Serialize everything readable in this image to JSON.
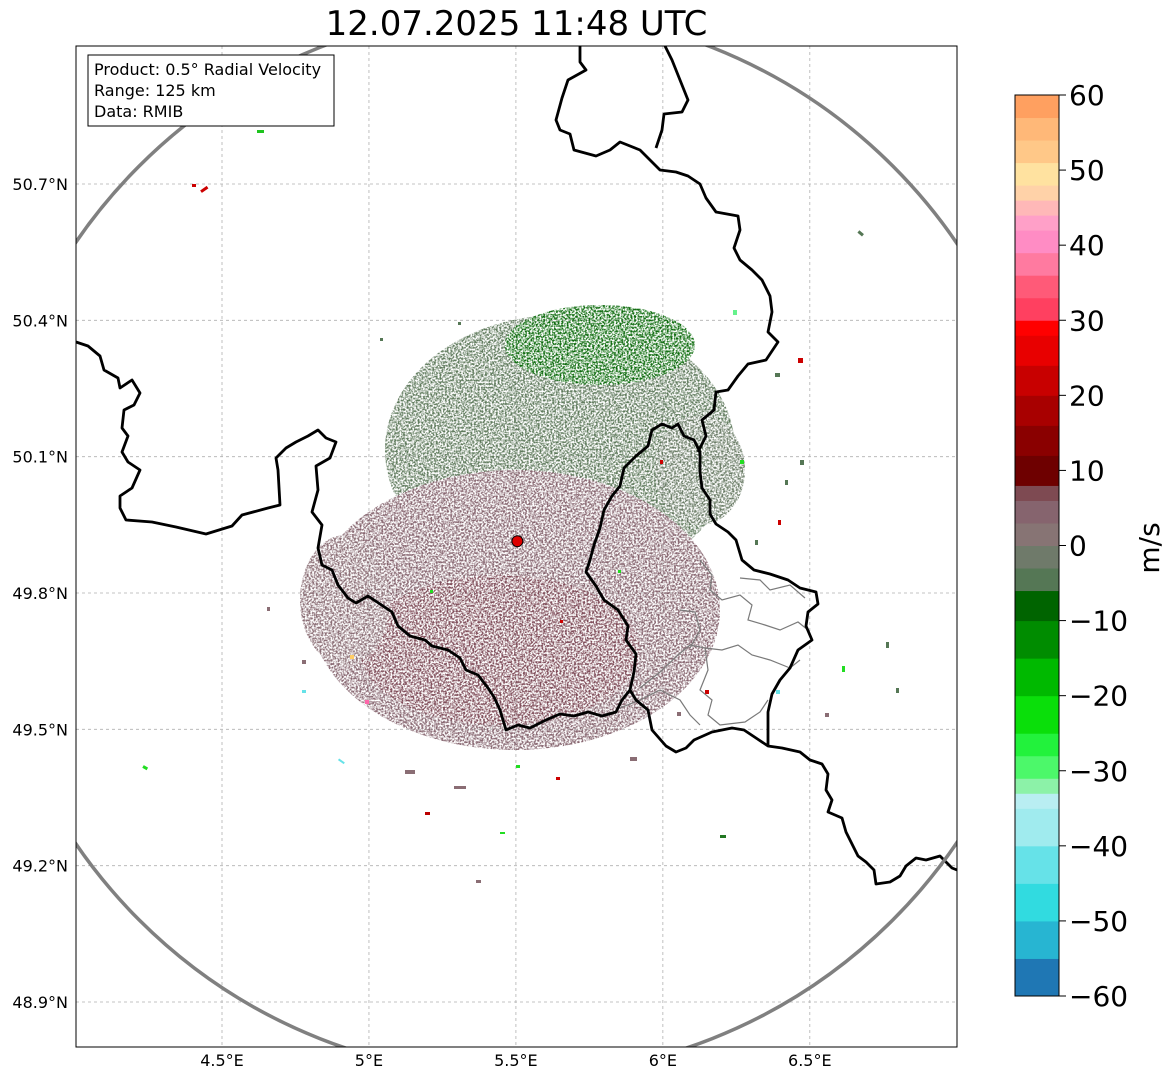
{
  "title": "12.07.2025 11:48 UTC",
  "info_box": {
    "product": "Product: 0.5° Radial Velocity",
    "range": "Range: 125 km",
    "data": "Data: RMIB"
  },
  "map": {
    "lon_ticks": [
      {
        "value": 4.5,
        "label": "4.5°E"
      },
      {
        "value": 5.0,
        "label": "5°E"
      },
      {
        "value": 5.5,
        "label": "5.5°E"
      },
      {
        "value": 6.0,
        "label": "6°E"
      },
      {
        "value": 6.5,
        "label": "6.5°E"
      }
    ],
    "lat_ticks": [
      {
        "value": 50.7,
        "label": "50.7°N"
      },
      {
        "value": 50.4,
        "label": "50.4°N"
      },
      {
        "value": 50.1,
        "label": "50.1°N"
      },
      {
        "value": 49.8,
        "label": "49.8°N"
      },
      {
        "value": 49.5,
        "label": "49.5°N"
      },
      {
        "value": 49.2,
        "label": "49.2°N"
      },
      {
        "value": 48.9,
        "label": "48.9°N"
      }
    ],
    "radar_site": {
      "lon": 5.505,
      "lat": 49.914
    },
    "range_km": 125
  },
  "colorbar": {
    "label": "m/s",
    "min": -60,
    "max": 60,
    "tick_labels": [
      {
        "value": 60,
        "label": "60"
      },
      {
        "value": 50,
        "label": "50"
      },
      {
        "value": 40,
        "label": "40"
      },
      {
        "value": 30,
        "label": "30"
      },
      {
        "value": 20,
        "label": "20"
      },
      {
        "value": 10,
        "label": "10"
      },
      {
        "value": 0,
        "label": "0"
      },
      {
        "value": -10,
        "label": "−10"
      },
      {
        "value": -20,
        "label": "−20"
      },
      {
        "value": -30,
        "label": "−30"
      },
      {
        "value": -40,
        "label": "−40"
      },
      {
        "value": -50,
        "label": "−50"
      },
      {
        "value": -60,
        "label": "−60"
      }
    ],
    "segments": [
      {
        "from": -60,
        "to": -55,
        "color": "#1f77b4"
      },
      {
        "from": -55,
        "to": -50,
        "color": "#27b5d2"
      },
      {
        "from": -50,
        "to": -45,
        "color": "#31dbe0"
      },
      {
        "from": -45,
        "to": -40,
        "color": "#66e2e8"
      },
      {
        "from": -40,
        "to": -35,
        "color": "#a0ebee"
      },
      {
        "from": -35,
        "to": -33,
        "color": "#b9eef2"
      },
      {
        "from": -33,
        "to": -31,
        "color": "#8cf2a8"
      },
      {
        "from": -31,
        "to": -28,
        "color": "#4cf86a"
      },
      {
        "from": -28,
        "to": -25,
        "color": "#22f23c"
      },
      {
        "from": -25,
        "to": -20,
        "color": "#0adf0a"
      },
      {
        "from": -20,
        "to": -15,
        "color": "#00b900"
      },
      {
        "from": -15,
        "to": -10,
        "color": "#008c00"
      },
      {
        "from": -10,
        "to": -6,
        "color": "#006400"
      },
      {
        "from": -6,
        "to": -3,
        "color": "#557755"
      },
      {
        "from": -3,
        "to": 0,
        "color": "#6f7a6a"
      },
      {
        "from": 0,
        "to": 3,
        "color": "#877474"
      },
      {
        "from": 3,
        "to": 6,
        "color": "#86646e"
      },
      {
        "from": 6,
        "to": 8,
        "color": "#7e4a52"
      },
      {
        "from": 8,
        "to": 12,
        "color": "#6e0000"
      },
      {
        "from": 12,
        "to": 16,
        "color": "#8a0000"
      },
      {
        "from": 16,
        "to": 20,
        "color": "#a80000"
      },
      {
        "from": 20,
        "to": 24,
        "color": "#c80000"
      },
      {
        "from": 24,
        "to": 28,
        "color": "#e80000"
      },
      {
        "from": 28,
        "to": 30,
        "color": "#ff0000"
      },
      {
        "from": 30,
        "to": 33,
        "color": "#ff4060"
      },
      {
        "from": 33,
        "to": 36,
        "color": "#ff5a78"
      },
      {
        "from": 36,
        "to": 39,
        "color": "#ff7aa0"
      },
      {
        "from": 39,
        "to": 42,
        "color": "#ff8cc4"
      },
      {
        "from": 42,
        "to": 44,
        "color": "#ffa0c8"
      },
      {
        "from": 44,
        "to": 46,
        "color": "#ffb8b8"
      },
      {
        "from": 46,
        "to": 48,
        "color": "#ffd2a8"
      },
      {
        "from": 48,
        "to": 51,
        "color": "#ffe2a0"
      },
      {
        "from": 51,
        "to": 54,
        "color": "#ffc888"
      },
      {
        "from": 54,
        "to": 57,
        "color": "#ffb878"
      },
      {
        "from": 57,
        "to": 60,
        "color": "#ffa060"
      }
    ]
  }
}
